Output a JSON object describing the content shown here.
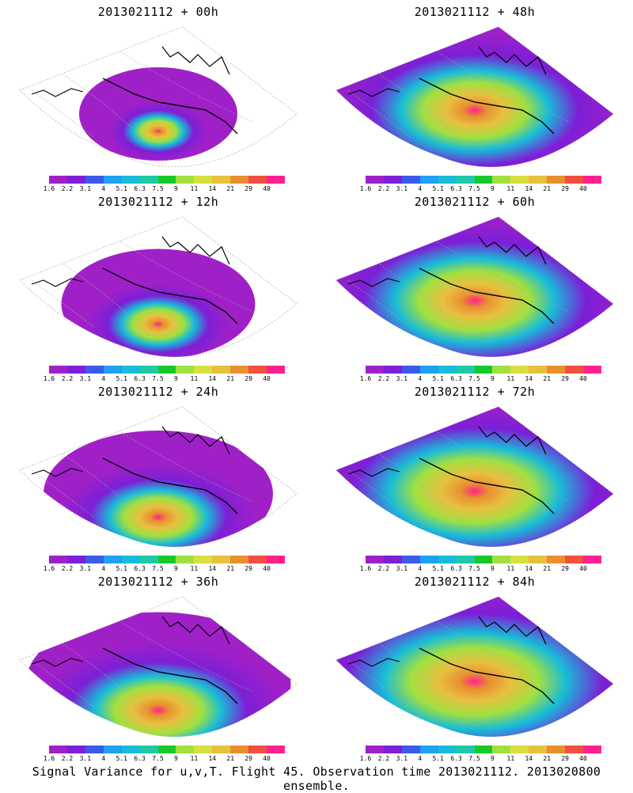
{
  "caption": "Signal Variance for u,v,T. Flight 45. Observation time 2013021112. 2013020800 ensemble.",
  "colorbar": {
    "labels": [
      "1.6",
      "2.2",
      "3.1",
      "4",
      "5.1",
      "6.3",
      "7.5",
      "9",
      "11",
      "14",
      "21",
      "29",
      "40"
    ],
    "colors": [
      "#a020c8",
      "#7c1fd6",
      "#3c5ae8",
      "#1fa0f0",
      "#18bcd8",
      "#20c8a8",
      "#18c828",
      "#a0e040",
      "#d8e040",
      "#e8c040",
      "#e89030",
      "#f05040",
      "#ff2090"
    ]
  },
  "panels": [
    {
      "title": "2013021112 + 00h",
      "hot": [
        200,
        130
      ],
      "level": 0.2
    },
    {
      "title": "2013021112 + 48h",
      "hot": [
        200,
        110
      ],
      "level": 0.75
    },
    {
      "title": "2013021112 + 12h",
      "hot": [
        200,
        130
      ],
      "level": 0.35
    },
    {
      "title": "2013021112 + 60h",
      "hot": [
        200,
        110
      ],
      "level": 0.8
    },
    {
      "title": "2013021112 + 24h",
      "hot": [
        200,
        130
      ],
      "level": 0.5
    },
    {
      "title": "2013021112 + 72h",
      "hot": [
        200,
        110
      ],
      "level": 0.85
    },
    {
      "title": "2013021112 + 36h",
      "hot": [
        200,
        130
      ],
      "level": 0.65
    },
    {
      "title": "2013021112 + 84h",
      "hot": [
        200,
        110
      ],
      "level": 0.9
    }
  ]
}
